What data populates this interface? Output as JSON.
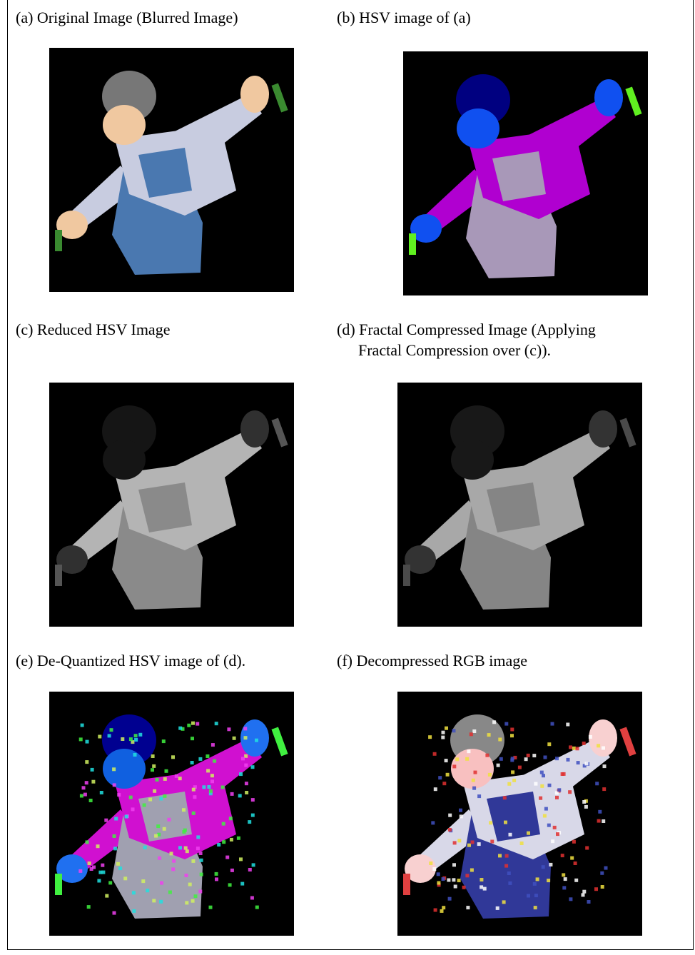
{
  "panels": [
    {
      "caption": [
        "(a) Original Image (Blurred Image)"
      ]
    },
    {
      "caption": [
        "(b) HSV image of (a)"
      ]
    },
    {
      "caption": [
        "(c)  Reduced HSV Image"
      ]
    },
    {
      "caption": [
        "(d) Fractal Compressed Image (Applying",
        "Fractal Compression over (c))."
      ]
    },
    {
      "caption": [
        "(e) De-Quantized HSV image of (d)."
      ]
    },
    {
      "caption": [
        "(f) Decompressed RGB image"
      ]
    }
  ]
}
